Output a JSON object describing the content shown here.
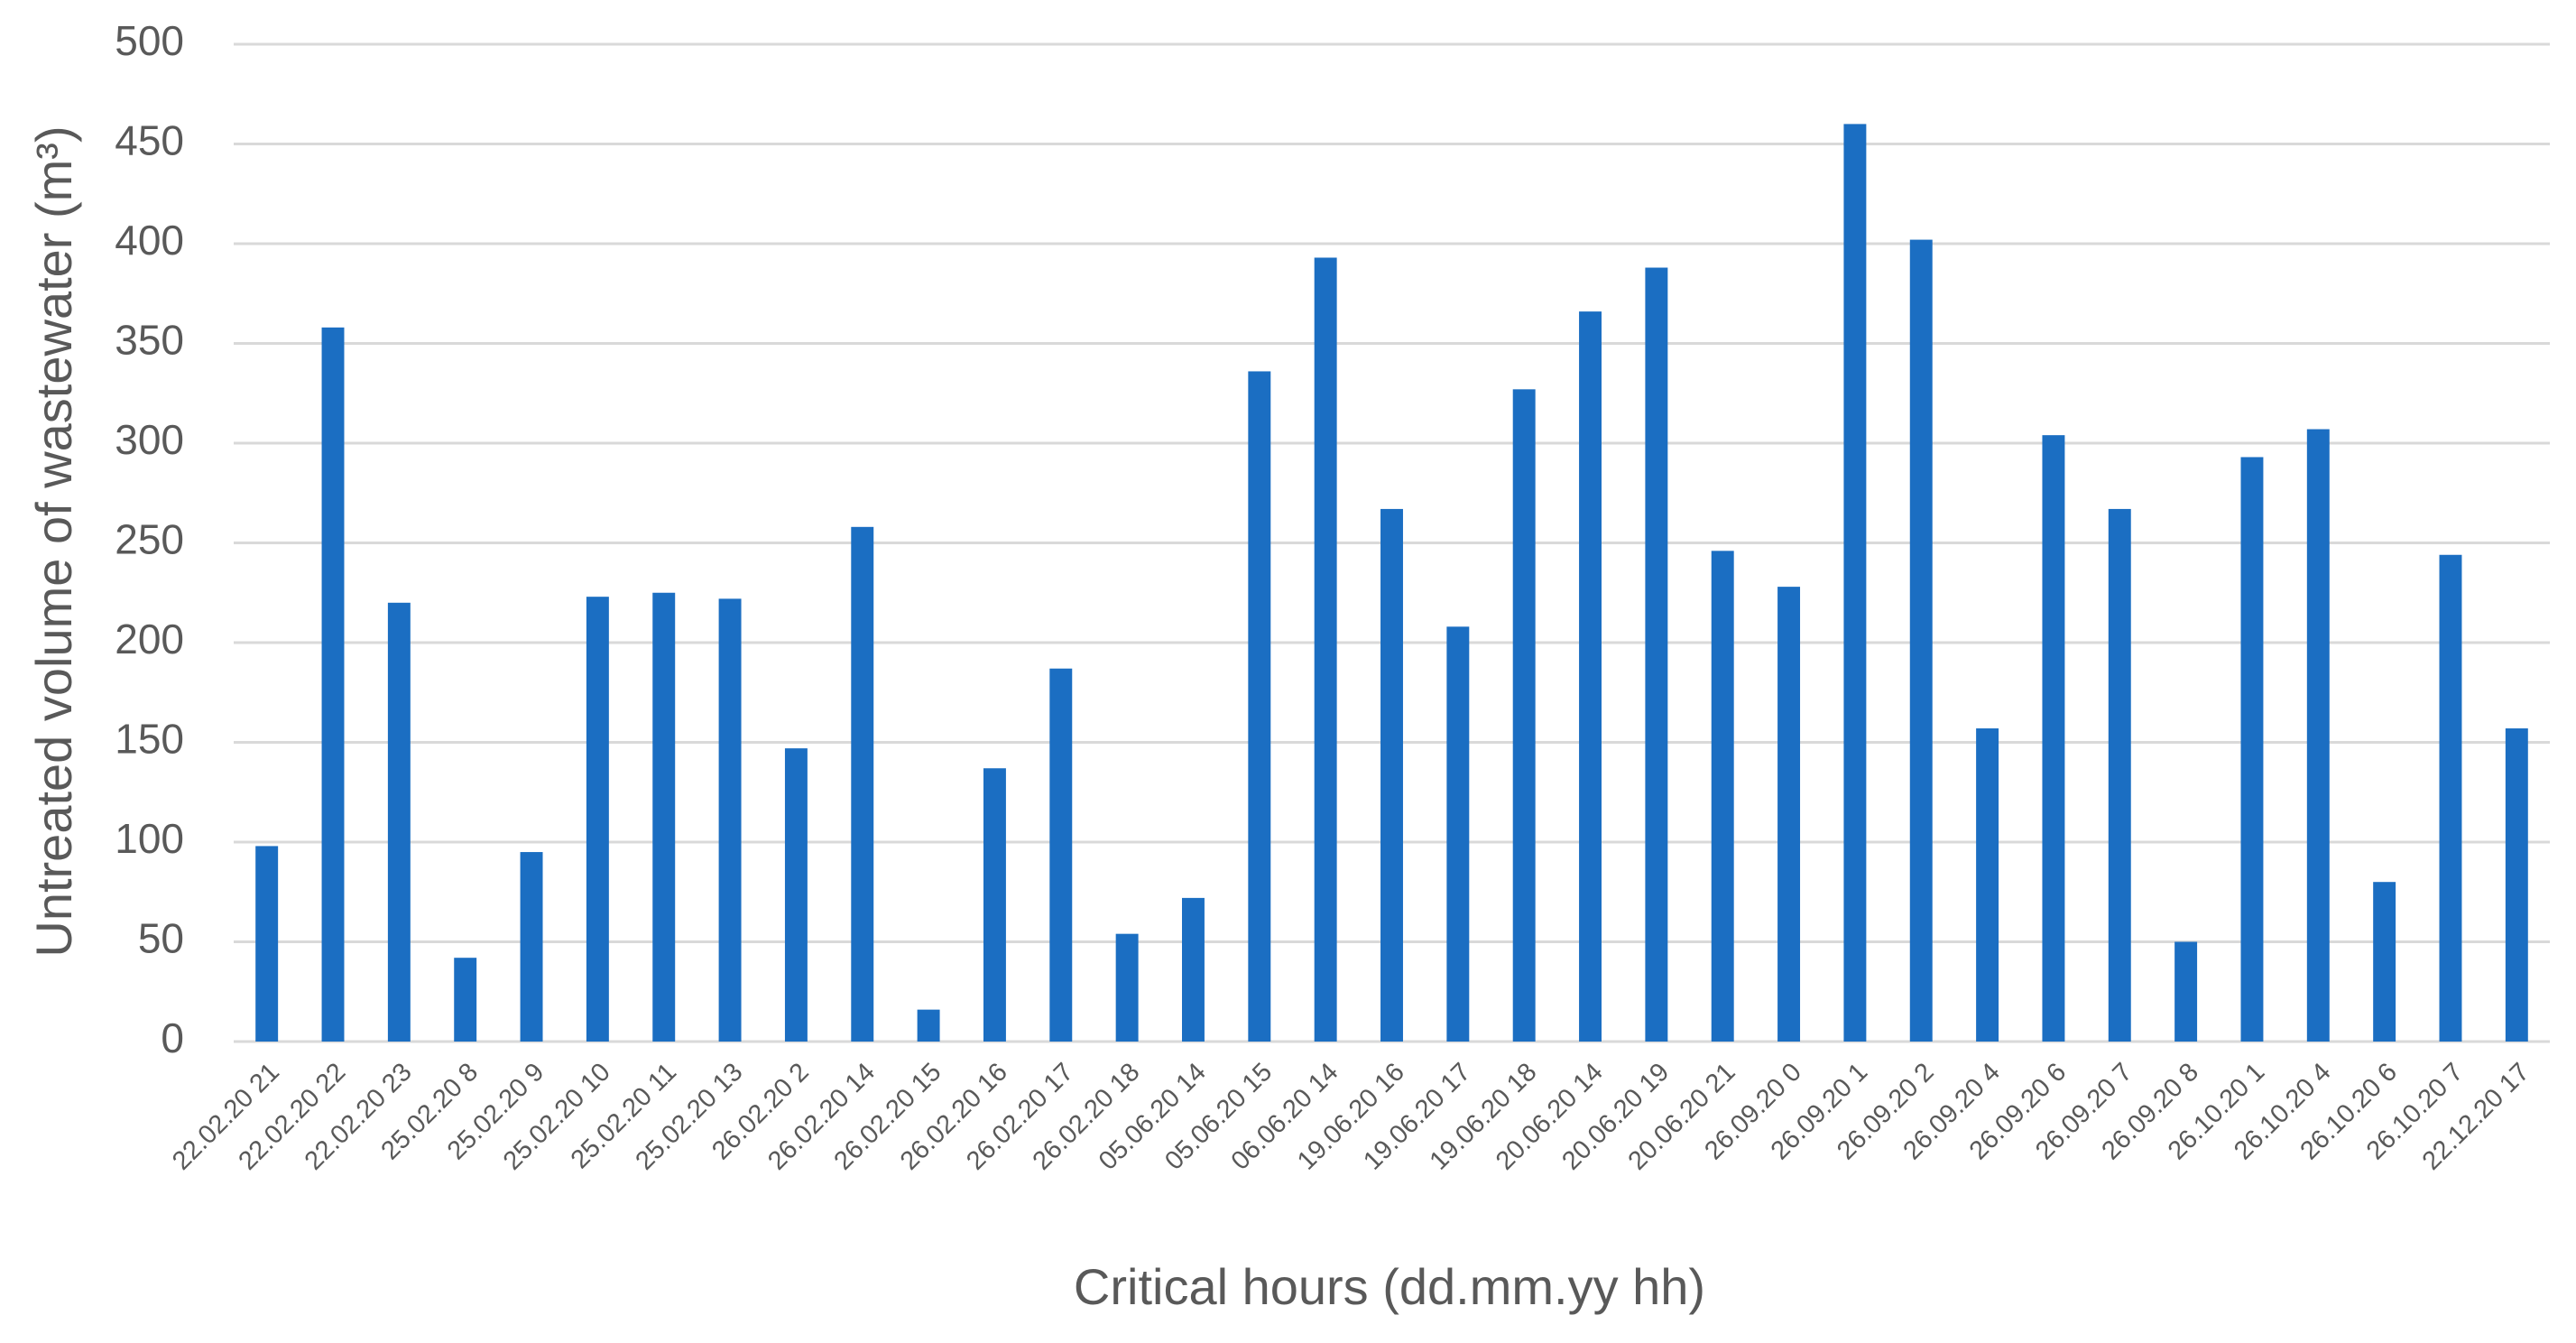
{
  "chart_data": {
    "type": "bar",
    "x_label": "Critical hours (dd.mm.yy hh)",
    "y_label": "Untreated volume of wastewater (m³)",
    "categories": [
      "22.02.20 21",
      "22.02.20 22",
      "22.02.20 23",
      "25.02.20 8",
      "25.02.20 9",
      "25.02.20 10",
      "25.02.20 11",
      "25.02.20 13",
      "26.02.20 2",
      "26.02.20 14",
      "26.02.20 15",
      "26.02.20 16",
      "26.02.20 17",
      "26.02.20 18",
      "05.06.20 14",
      "05.06.20 15",
      "06.06.20 14",
      "19.06.20 16",
      "19.06.20 17",
      "19.06.20 18",
      "20.06.20 14",
      "20.06.20 19",
      "20.06.20 21",
      "26.09.20 0",
      "26.09.20 1",
      "26.09.20 2",
      "26.09.20 4",
      "26.09.20 6",
      "26.09.20 7",
      "26.09.20 8",
      "26.10.20 1",
      "26.10.20 4",
      "26.10.20 6",
      "26.10.20 7",
      "22.12.20 17"
    ],
    "values": [
      98,
      358,
      220,
      42,
      95,
      223,
      225,
      222,
      147,
      258,
      16,
      137,
      187,
      54,
      72,
      336,
      393,
      267,
      208,
      327,
      366,
      388,
      246,
      228,
      460,
      402,
      157,
      304,
      267,
      50,
      293,
      307,
      80,
      244,
      157
    ],
    "color": "#1b6ec2",
    "ylim": [
      0,
      500
    ],
    "yticks": [
      0,
      50,
      100,
      150,
      200,
      250,
      300,
      350,
      400,
      450,
      500
    ],
    "grid": true
  }
}
